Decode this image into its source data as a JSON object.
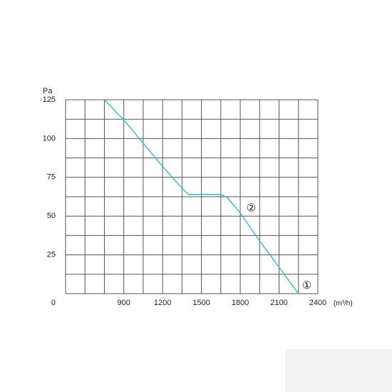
{
  "chart_data": {
    "type": "line",
    "y_label": "Pa",
    "x_unit": "(m³/h)",
    "x": [
      750,
      900,
      1050,
      1200,
      1350,
      1400,
      1500,
      1650,
      1700,
      1800,
      1950,
      2100,
      2250
    ],
    "series": [
      {
        "name": "curve",
        "color": "#3cb9d6",
        "values": [
          125,
          112,
          97,
          82,
          68,
          64,
          64,
          64,
          62,
          52,
          34,
          17,
          0
        ]
      }
    ],
    "xlim": [
      450,
      2400
    ],
    "xticks": [
      900,
      1200,
      1500,
      1800,
      2100,
      2400
    ],
    "ylim": [
      0,
      125
    ],
    "yticks": [
      0,
      25,
      50,
      75,
      100,
      125
    ],
    "xgrid": [
      450,
      600,
      750,
      900,
      1050,
      1200,
      1350,
      1500,
      1650,
      1800,
      1950,
      2100,
      2250,
      2400
    ],
    "ygrid": [
      0,
      12.5,
      25,
      37.5,
      50,
      62.5,
      75,
      87.5,
      100,
      112.5,
      125
    ],
    "grid": true,
    "annotations": [
      {
        "text": "②",
        "x": 1885,
        "y": 55
      },
      {
        "text": "①",
        "x": 2315,
        "y": 5
      }
    ]
  }
}
